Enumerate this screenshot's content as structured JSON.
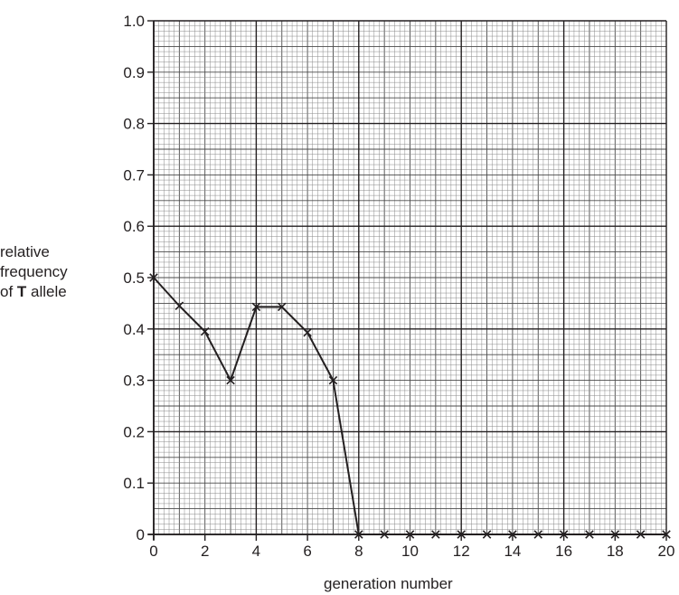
{
  "chart_data": {
    "type": "line",
    "title": "",
    "xlabel": "generation number",
    "ylabel_lines": [
      "relative",
      "frequency"
    ],
    "ylabel_prefix": "of",
    "ylabel_bold": "T",
    "ylabel_suffix": "allele",
    "xlim": [
      0,
      20
    ],
    "ylim": [
      0,
      1.0
    ],
    "x_ticks": [
      "0",
      "2",
      "4",
      "6",
      "8",
      "10",
      "12",
      "14",
      "16",
      "18",
      "20"
    ],
    "y_ticks": [
      "0",
      "0.1",
      "0.2",
      "0.3",
      "0.4",
      "0.5",
      "0.6",
      "0.7",
      "0.8",
      "0.9",
      "1.0"
    ],
    "grid": true,
    "marker": "cross",
    "series": [
      {
        "x": [
          0,
          1,
          2,
          3,
          4,
          5,
          6,
          7,
          8,
          9,
          10,
          11,
          12,
          13,
          14,
          15,
          16,
          17,
          18,
          19,
          20
        ],
        "y": [
          0.5,
          0.445,
          0.395,
          0.3,
          0.443,
          0.443,
          0.393,
          0.3,
          0,
          0,
          0,
          0,
          0,
          0,
          0,
          0,
          0,
          0,
          0,
          0,
          0
        ]
      }
    ]
  }
}
